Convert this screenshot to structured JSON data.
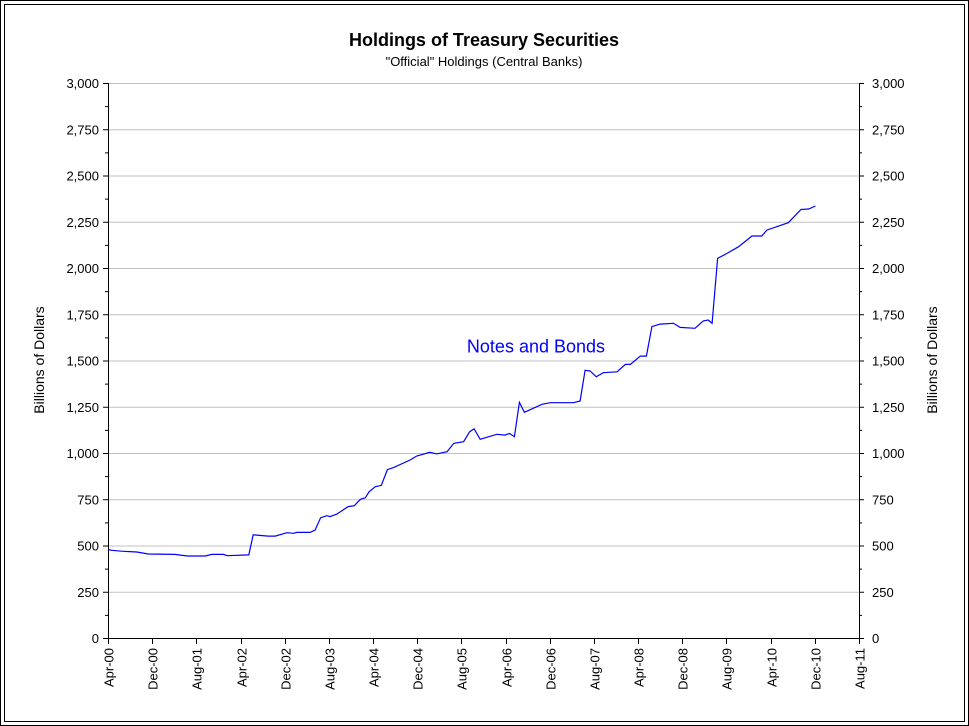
{
  "chart_data": {
    "type": "line",
    "title": "Holdings of Treasury Securities",
    "subtitle": "\"Official\" Holdings (Central Banks)",
    "ylabel_left": "Billions of Dollars",
    "ylabel_right": "Billions of Dollars",
    "xlabel": "",
    "ylim": [
      0,
      3000
    ],
    "yticks": [
      0,
      250,
      500,
      750,
      1000,
      1250,
      1500,
      1750,
      2000,
      2250,
      2500,
      2750,
      3000
    ],
    "ytick_labels": [
      "0",
      "250",
      "500",
      "750",
      "1,000",
      "1,250",
      "1,500",
      "1,750",
      "2,000",
      "2,250",
      "2,500",
      "2,750",
      "3,000"
    ],
    "x_unit": "months since Apr-00",
    "xlim": [
      0,
      136
    ],
    "xticks": [
      0,
      8,
      16,
      24,
      32,
      40,
      48,
      56,
      64,
      72,
      80,
      88,
      96,
      104,
      112,
      120,
      128,
      136
    ],
    "xtick_labels": [
      "Apr-00",
      "Dec-00",
      "Aug-01",
      "Apr-02",
      "Dec-02",
      "Aug-03",
      "Apr-04",
      "Dec-04",
      "Aug-05",
      "Apr-06",
      "Dec-06",
      "Aug-07",
      "Apr-08",
      "Dec-08",
      "Aug-09",
      "Apr-10",
      "Dec-10",
      "Aug-11"
    ],
    "grid": true,
    "series": [
      {
        "name": "Notes and Bonds",
        "color": "#0000ff",
        "x": [
          0,
          0.7,
          2.4,
          5.2,
          7.3,
          12.1,
          14.4,
          17.6,
          18.8,
          20.9,
          21.6,
          25.5,
          26.3,
          29.0,
          30.3,
          32.4,
          33.6,
          34.2,
          36.6,
          37.5,
          38.5,
          39.6,
          40.2,
          41.4,
          43.5,
          44.6,
          45.7,
          46.6,
          47.3,
          48.4,
          49.5,
          50.6,
          51.7,
          54.7,
          55.9,
          58.3,
          59.5,
          61.4,
          62.6,
          64.4,
          65.5,
          66.3,
          67.4,
          68.6,
          70.4,
          71.9,
          72.7,
          73.6,
          74.5,
          75.4,
          78.6,
          80.1,
          84.3,
          85.5,
          86.4,
          87.3,
          88.4,
          89.7,
          92.2,
          93.7,
          94.6,
          96.4,
          97.5,
          98.5,
          100.0,
          102.4,
          103.6,
          106.3,
          107.8,
          108.7,
          109.4,
          110.4,
          112.1,
          114.2,
          116.6,
          118.4,
          119.3,
          123.2,
          125.5,
          126.9,
          128.1
        ],
        "values": [
          478,
          474,
          469,
          465,
          454,
          452,
          443,
          443,
          452,
          452,
          445,
          449,
          558,
          551,
          551,
          569,
          566,
          571,
          571,
          584,
          650,
          661,
          656,
          669,
          710,
          715,
          750,
          758,
          791,
          818,
          825,
          910,
          921,
          962,
          984,
          1004,
          995,
          1007,
          1052,
          1061,
          1115,
          1131,
          1074,
          1085,
          1101,
          1097,
          1106,
          1088,
          1274,
          1220,
          1263,
          1272,
          1272,
          1281,
          1447,
          1443,
          1412,
          1434,
          1439,
          1479,
          1479,
          1524,
          1524,
          1683,
          1697,
          1701,
          1679,
          1674,
          1714,
          1719,
          1701,
          2052,
          2079,
          2115,
          2173,
          2173,
          2205,
          2245,
          2317,
          2319,
          2335
        ]
      }
    ],
    "annotations": [
      {
        "text": "Notes and Bonds",
        "x": 65,
        "y": 1575,
        "color": "#0000ff"
      }
    ],
    "legend": "none"
  }
}
